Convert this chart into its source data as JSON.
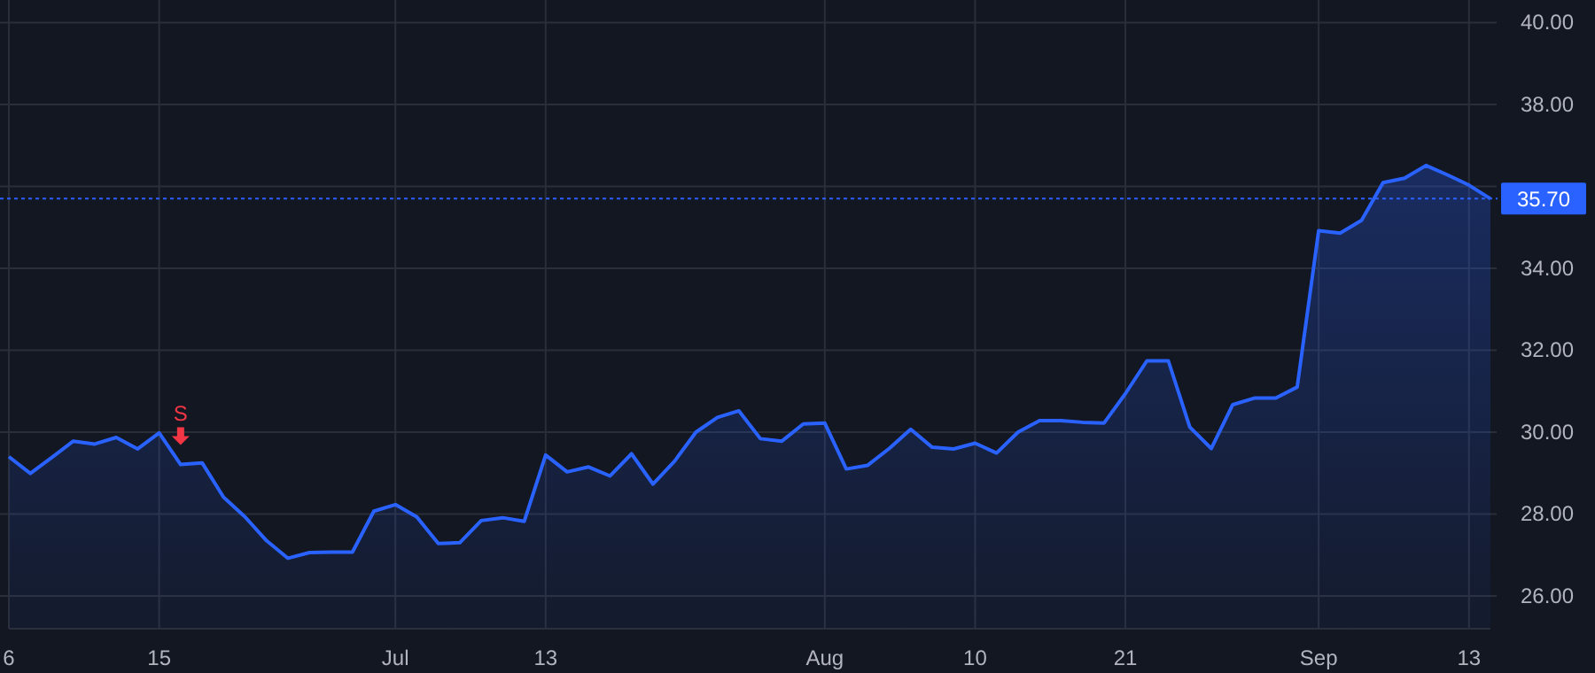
{
  "chart_data": {
    "type": "area",
    "categories": [
      "6",
      null,
      null,
      null,
      null,
      null,
      null,
      "15",
      null,
      null,
      null,
      null,
      null,
      null,
      null,
      null,
      null,
      null,
      "Jul",
      null,
      null,
      null,
      null,
      null,
      null,
      "13",
      null,
      null,
      null,
      null,
      null,
      null,
      null,
      null,
      null,
      null,
      null,
      null,
      "Aug",
      null,
      null,
      null,
      null,
      null,
      null,
      "10",
      null,
      null,
      null,
      null,
      null,
      null,
      "21",
      null,
      null,
      null,
      null,
      null,
      null,
      null,
      null,
      "Sep",
      null,
      null,
      null,
      null,
      null,
      null,
      "13",
      null
    ],
    "series": [
      {
        "color": "#2962ff",
        "values": [
          29.4,
          28.99,
          29.38,
          29.78,
          29.71,
          29.87,
          29.59,
          29.98,
          29.21,
          29.25,
          28.41,
          27.93,
          27.35,
          26.92,
          27.06,
          27.07,
          27.07,
          28.07,
          28.23,
          27.93,
          27.28,
          27.3,
          27.84,
          27.91,
          27.82,
          29.44,
          29.03,
          29.15,
          28.93,
          29.47,
          28.73,
          29.29,
          30.0,
          30.36,
          30.52,
          29.84,
          29.78,
          30.2,
          30.22,
          29.1,
          29.19,
          29.6,
          30.07,
          29.63,
          29.59,
          29.73,
          29.49,
          30.0,
          30.28,
          30.28,
          30.24,
          30.22,
          30.94,
          31.74,
          31.74,
          30.12,
          29.6,
          30.67,
          30.83,
          30.83,
          31.1,
          34.92,
          34.86,
          35.17,
          36.09,
          36.2,
          36.51,
          36.28,
          36.03,
          35.7
        ]
      }
    ],
    "ylim": [
      25.2,
      40.55
    ],
    "yticks": [
      {
        "value": 26,
        "label": "26.00"
      },
      {
        "value": 28,
        "label": "28.00"
      },
      {
        "value": 30,
        "label": "30.00"
      },
      {
        "value": 32,
        "label": "32.00"
      },
      {
        "value": 34,
        "label": "34.00"
      },
      {
        "value": 36,
        "label": null
      },
      {
        "value": 38,
        "label": "38.00"
      },
      {
        "value": 40,
        "label": "40.00"
      }
    ],
    "grid": true,
    "ref_lines": [
      {
        "axis": "y",
        "value": 35.7,
        "label": "35.70",
        "color": "#2962ff",
        "line_style": "dotted"
      }
    ],
    "annotations": [
      {
        "text": "S",
        "y": 29.21
      }
    ]
  }
}
